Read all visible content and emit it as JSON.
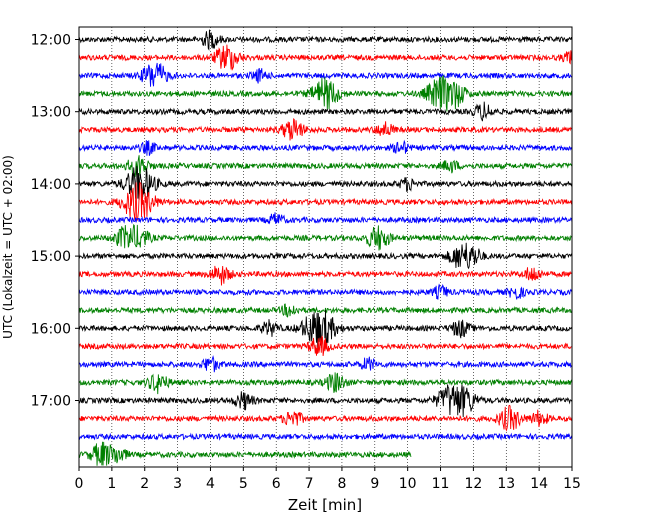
{
  "chart_data": {
    "type": "line",
    "title": "",
    "xlabel": "Zeit  [min]",
    "ylabel": "UTC (Lokalzeit = UTC + 02:00)",
    "xlim": [
      0,
      15
    ],
    "x_ticks": [
      "0",
      "1",
      "2",
      "3",
      "4",
      "5",
      "6",
      "7",
      "8",
      "9",
      "10",
      "11",
      "12",
      "13",
      "14",
      "15"
    ],
    "y_ticks": [
      "12:00",
      "13:00",
      "14:00",
      "15:00",
      "16:00",
      "17:00"
    ],
    "grid": "vertical dotted lines at each minute",
    "trace_interval_min": 15,
    "trace_duration_min": 15,
    "first_trace_utc": "12:00",
    "trace_colors_cycle": [
      "#000000",
      "#ff0000",
      "#0000ff",
      "#008000"
    ],
    "traces": [
      {
        "start": "12:00",
        "end_min": 15,
        "events": [
          {
            "t": 4.0,
            "amp": 1.4
          }
        ]
      },
      {
        "start": "12:15",
        "end_min": 15,
        "events": [
          {
            "t": 4.5,
            "amp": 2.2
          },
          {
            "t": 15.0,
            "amp": 1.2
          }
        ]
      },
      {
        "start": "12:30",
        "end_min": 15,
        "events": [
          {
            "t": 2.3,
            "amp": 2.3
          },
          {
            "t": 5.5,
            "amp": 1.0
          }
        ]
      },
      {
        "start": "12:45",
        "end_min": 15,
        "events": [
          {
            "t": 7.5,
            "amp": 2.6
          },
          {
            "t": 11.0,
            "amp": 2.8
          },
          {
            "t": 11.5,
            "amp": 1.6
          }
        ]
      },
      {
        "start": "13:00",
        "end_min": 15,
        "events": [
          {
            "t": 12.3,
            "amp": 1.4
          }
        ]
      },
      {
        "start": "13:15",
        "end_min": 15,
        "events": [
          {
            "t": 6.5,
            "amp": 1.8
          },
          {
            "t": 9.3,
            "amp": 1.2
          }
        ]
      },
      {
        "start": "13:30",
        "end_min": 15,
        "events": [
          {
            "t": 2.1,
            "amp": 1.0
          },
          {
            "t": 9.8,
            "amp": 1.0
          }
        ]
      },
      {
        "start": "13:45",
        "end_min": 15,
        "events": [
          {
            "t": 1.8,
            "amp": 1.8
          },
          {
            "t": 11.3,
            "amp": 1.0
          }
        ]
      },
      {
        "start": "14:00",
        "end_min": 15,
        "events": [
          {
            "t": 1.85,
            "amp": 3.0
          },
          {
            "t": 10.0,
            "amp": 1.0
          }
        ]
      },
      {
        "start": "14:15",
        "end_min": 15,
        "events": [
          {
            "t": 1.8,
            "amp": 3.2
          }
        ]
      },
      {
        "start": "14:30",
        "end_min": 15,
        "events": [
          {
            "t": 6.0,
            "amp": 1.0
          }
        ]
      },
      {
        "start": "14:45",
        "end_min": 15,
        "events": [
          {
            "t": 1.4,
            "amp": 1.8
          },
          {
            "t": 1.85,
            "amp": 1.6
          },
          {
            "t": 9.1,
            "amp": 2.0
          }
        ]
      },
      {
        "start": "15:00",
        "end_min": 15,
        "events": [
          {
            "t": 11.6,
            "amp": 2.0
          },
          {
            "t": 12.0,
            "amp": 1.4
          }
        ]
      },
      {
        "start": "15:15",
        "end_min": 15,
        "events": [
          {
            "t": 4.3,
            "amp": 1.6
          },
          {
            "t": 13.8,
            "amp": 1.2
          }
        ]
      },
      {
        "start": "15:30",
        "end_min": 15,
        "events": [
          {
            "t": 11.0,
            "amp": 1.0
          },
          {
            "t": 13.3,
            "amp": 1.0
          }
        ]
      },
      {
        "start": "15:45",
        "end_min": 15,
        "events": [
          {
            "t": 6.4,
            "amp": 1.0
          }
        ]
      },
      {
        "start": "16:00",
        "end_min": 15,
        "events": [
          {
            "t": 5.8,
            "amp": 1.2
          },
          {
            "t": 7.3,
            "amp": 3.4
          },
          {
            "t": 11.6,
            "amp": 1.4
          }
        ]
      },
      {
        "start": "16:15",
        "end_min": 15,
        "events": [
          {
            "t": 7.3,
            "amp": 1.6
          }
        ]
      },
      {
        "start": "16:30",
        "end_min": 15,
        "events": [
          {
            "t": 4.0,
            "amp": 1.2
          },
          {
            "t": 8.8,
            "amp": 1.0
          }
        ]
      },
      {
        "start": "16:45",
        "end_min": 15,
        "events": [
          {
            "t": 2.4,
            "amp": 1.6
          },
          {
            "t": 7.8,
            "amp": 1.6
          }
        ]
      },
      {
        "start": "17:00",
        "end_min": 15,
        "events": [
          {
            "t": 5.0,
            "amp": 1.4
          },
          {
            "t": 11.3,
            "amp": 2.6
          },
          {
            "t": 11.8,
            "amp": 1.8
          }
        ]
      },
      {
        "start": "17:15",
        "end_min": 15,
        "events": [
          {
            "t": 6.5,
            "amp": 1.4
          },
          {
            "t": 13.1,
            "amp": 2.0
          },
          {
            "t": 14.0,
            "amp": 1.2
          }
        ]
      },
      {
        "start": "17:30",
        "end_min": 15,
        "events": []
      },
      {
        "start": "17:45",
        "end_min": 10.1,
        "events": [
          {
            "t": 0.7,
            "amp": 2.0
          },
          {
            "t": 1.2,
            "amp": 1.2
          }
        ]
      }
    ]
  }
}
